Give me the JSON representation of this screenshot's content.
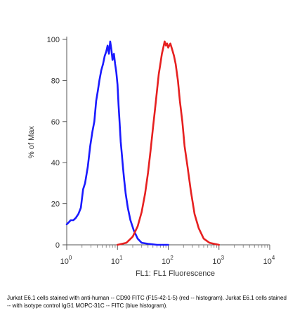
{
  "chart_data": {
    "type": "line",
    "title": "",
    "xlabel": "FL1: FL1 Fluorescence",
    "ylabel": "% of Max",
    "xscale": "log",
    "xlim": [
      1,
      10000
    ],
    "ylim": [
      0,
      100
    ],
    "x_ticks": [
      {
        "value": 1,
        "base": "10",
        "exp": "0"
      },
      {
        "value": 10,
        "base": "10",
        "exp": "1"
      },
      {
        "value": 100,
        "base": "10",
        "exp": "2"
      },
      {
        "value": 1000,
        "base": "10",
        "exp": "3"
      },
      {
        "value": 10000,
        "base": "10",
        "exp": "4"
      }
    ],
    "y_ticks": [
      {
        "value": 0,
        "label": "0"
      },
      {
        "value": 20,
        "label": "20"
      },
      {
        "value": 40,
        "label": "40"
      },
      {
        "value": 60,
        "label": "60"
      },
      {
        "value": 80,
        "label": "80"
      },
      {
        "value": 100,
        "label": "100"
      }
    ],
    "grid": false,
    "legend": "none",
    "series": [
      {
        "color": "#1a1aff",
        "x": [
          1.0,
          1.1,
          1.2,
          1.35,
          1.5,
          1.7,
          1.9,
          2.1,
          2.3,
          2.6,
          2.9,
          3.2,
          3.5,
          3.8,
          4.1,
          4.4,
          4.8,
          5.2,
          5.6,
          6.0,
          6.4,
          6.8,
          7.2,
          7.6,
          8.0,
          8.5,
          9.0,
          9.5,
          10.0,
          10.5,
          11.0,
          11.6,
          12.2,
          12.8,
          13.5,
          14.5,
          16.0,
          18.0,
          21.0,
          25.0,
          30.0,
          40.0,
          60.0,
          100.0
        ],
        "y": [
          10,
          11,
          12,
          12,
          13,
          15,
          18,
          27,
          30,
          38,
          48,
          55,
          60,
          70,
          75,
          80,
          85,
          88,
          92,
          94,
          97,
          93,
          99,
          95,
          90,
          93,
          88,
          84,
          78,
          68,
          60,
          50,
          44,
          38,
          32,
          25,
          18,
          12,
          7,
          3,
          1,
          0.5,
          0,
          0
        ]
      },
      {
        "color": "#e62020",
        "x": [
          10,
          15,
          20,
          25,
          30,
          35,
          40,
          45,
          50,
          55,
          60,
          65,
          70,
          75,
          80,
          85,
          90,
          95,
          100,
          110,
          120,
          130,
          140,
          155,
          170,
          190,
          210,
          240,
          280,
          330,
          400,
          500,
          650,
          800,
          1000
        ],
        "y": [
          0,
          1,
          4,
          9,
          16,
          25,
          35,
          46,
          57,
          66,
          75,
          83,
          88,
          93,
          96,
          99,
          97,
          98,
          96,
          98,
          95,
          92,
          88,
          80,
          70,
          60,
          48,
          38,
          26,
          15,
          8,
          3,
          1,
          0.5,
          0
        ]
      }
    ]
  },
  "caption": {
    "text": "Jurkat E6.1 cells stained with anti-human -- CD90 FITC (F15-42-1-5) (red -- histogram). Jurkat E6.1 cells stained -- with isotype control IgG1 MOPC-31C -- FITC (blue histogram)."
  }
}
